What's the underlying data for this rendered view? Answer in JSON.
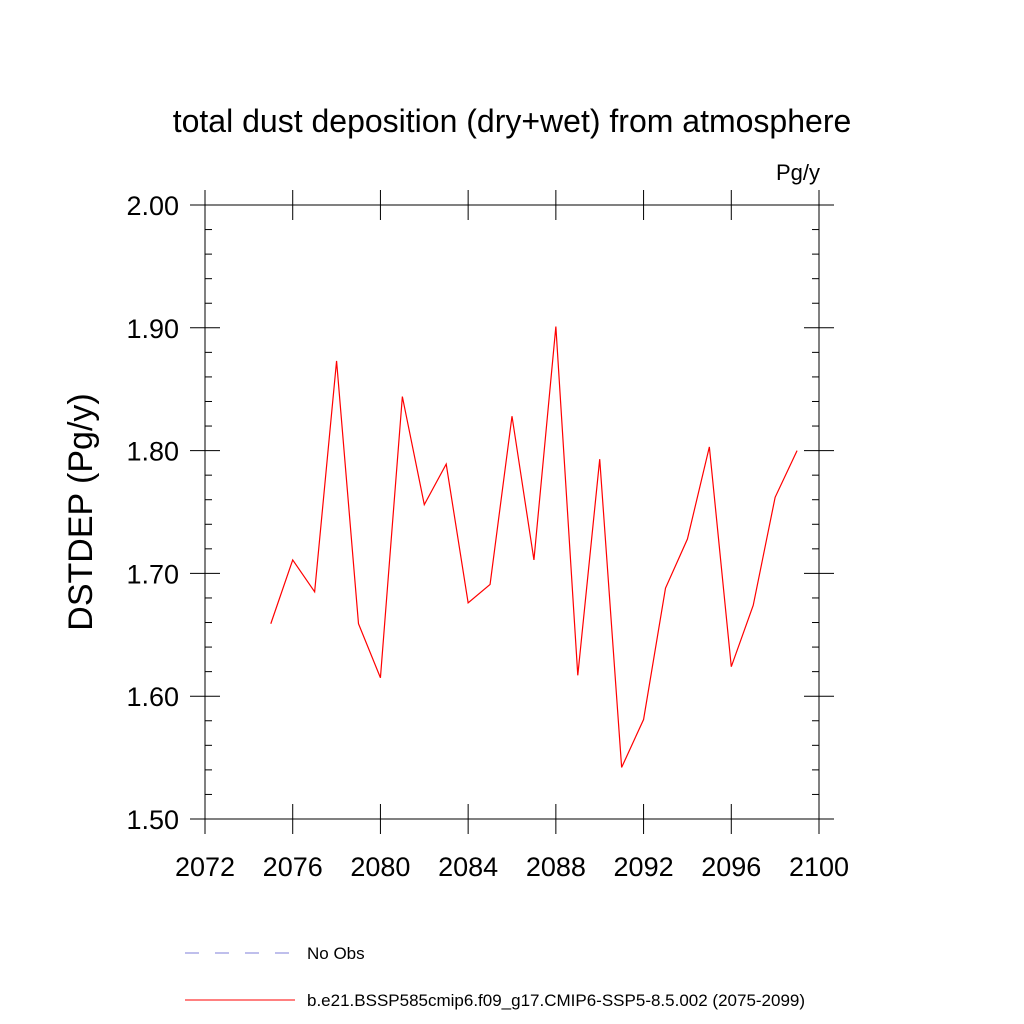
{
  "chart_data": {
    "type": "line",
    "title": "total dust deposition (dry+wet) from atmosphere",
    "units_label": "Pg/y",
    "xlabel": "",
    "ylabel": "DSTDEP  (Pg/y)",
    "xlim": [
      2072,
      2100
    ],
    "ylim": [
      1.5,
      2.0
    ],
    "x_ticks": [
      "2072",
      "2076",
      "2080",
      "2084",
      "2088",
      "2092",
      "2096",
      "2100"
    ],
    "y_ticks": [
      "1.50",
      "1.60",
      "1.70",
      "1.80",
      "1.90",
      "2.00"
    ],
    "grid": false,
    "legend_position": "bottom",
    "series": [
      {
        "name": "b.e21.BSSP585cmip6.f09_g17.CMIP6-SSP5-8.5.002 (2075-2099)",
        "color": "#ff0000",
        "style": "solid",
        "x": [
          2075,
          2076,
          2077,
          2078,
          2079,
          2080,
          2081,
          2082,
          2083,
          2084,
          2085,
          2086,
          2087,
          2088,
          2089,
          2090,
          2091,
          2092,
          2093,
          2094,
          2095,
          2096,
          2097,
          2098,
          2099
        ],
        "values": [
          1.659,
          1.711,
          1.685,
          1.873,
          1.659,
          1.615,
          1.844,
          1.756,
          1.789,
          1.676,
          1.691,
          1.828,
          1.711,
          1.901,
          1.617,
          1.793,
          1.542,
          1.581,
          1.688,
          1.728,
          1.803,
          1.624,
          1.674,
          1.762,
          1.8
        ]
      }
    ],
    "legend": [
      {
        "label": "No Obs",
        "color": "#7f7fd8",
        "style": "dashed"
      },
      {
        "label": "b.e21.BSSP585cmip6.f09_g17.CMIP6-SSP5-8.5.002 (2075-2099)",
        "color": "#ff0000",
        "style": "solid"
      }
    ]
  }
}
